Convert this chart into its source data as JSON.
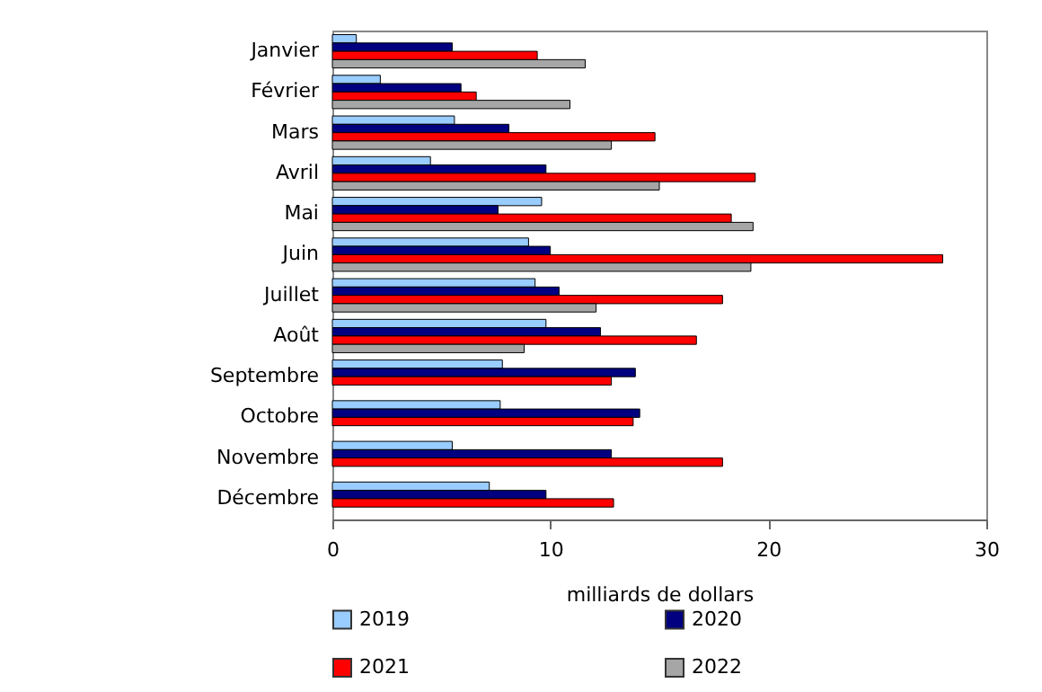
{
  "chart_data": {
    "type": "bar",
    "orientation": "horizontal",
    "xlabel": "milliards de dollars",
    "categories": [
      "Janvier",
      "Février",
      "Mars",
      "Avril",
      "Mai",
      "Juin",
      "Juillet",
      "Août",
      "Septembre",
      "Octobre",
      "Novembre",
      "Décembre"
    ],
    "series": [
      {
        "name": "2019",
        "color": "#99ccff",
        "values": [
          1.1,
          2.2,
          5.6,
          4.5,
          9.6,
          9.0,
          9.3,
          9.8,
          7.8,
          7.7,
          5.5,
          7.2
        ]
      },
      {
        "name": "2020",
        "color": "#000080",
        "values": [
          5.5,
          5.9,
          8.1,
          9.8,
          7.6,
          10.0,
          10.4,
          12.3,
          13.9,
          14.1,
          12.8,
          9.8
        ]
      },
      {
        "name": "2021",
        "color": "#ff0000",
        "values": [
          9.4,
          6.6,
          14.8,
          19.4,
          18.3,
          28.0,
          17.9,
          16.7,
          12.8,
          13.8,
          17.9,
          12.9
        ]
      },
      {
        "name": "2022",
        "color": "#a6a6a6",
        "values": [
          11.6,
          10.9,
          12.8,
          15.0,
          19.3,
          19.2,
          12.1,
          8.8,
          null,
          null,
          null,
          null
        ]
      }
    ],
    "xlim": [
      0,
      30
    ],
    "xticks": [
      0,
      10,
      20,
      30
    ],
    "grid": false,
    "legend": "bottom"
  }
}
